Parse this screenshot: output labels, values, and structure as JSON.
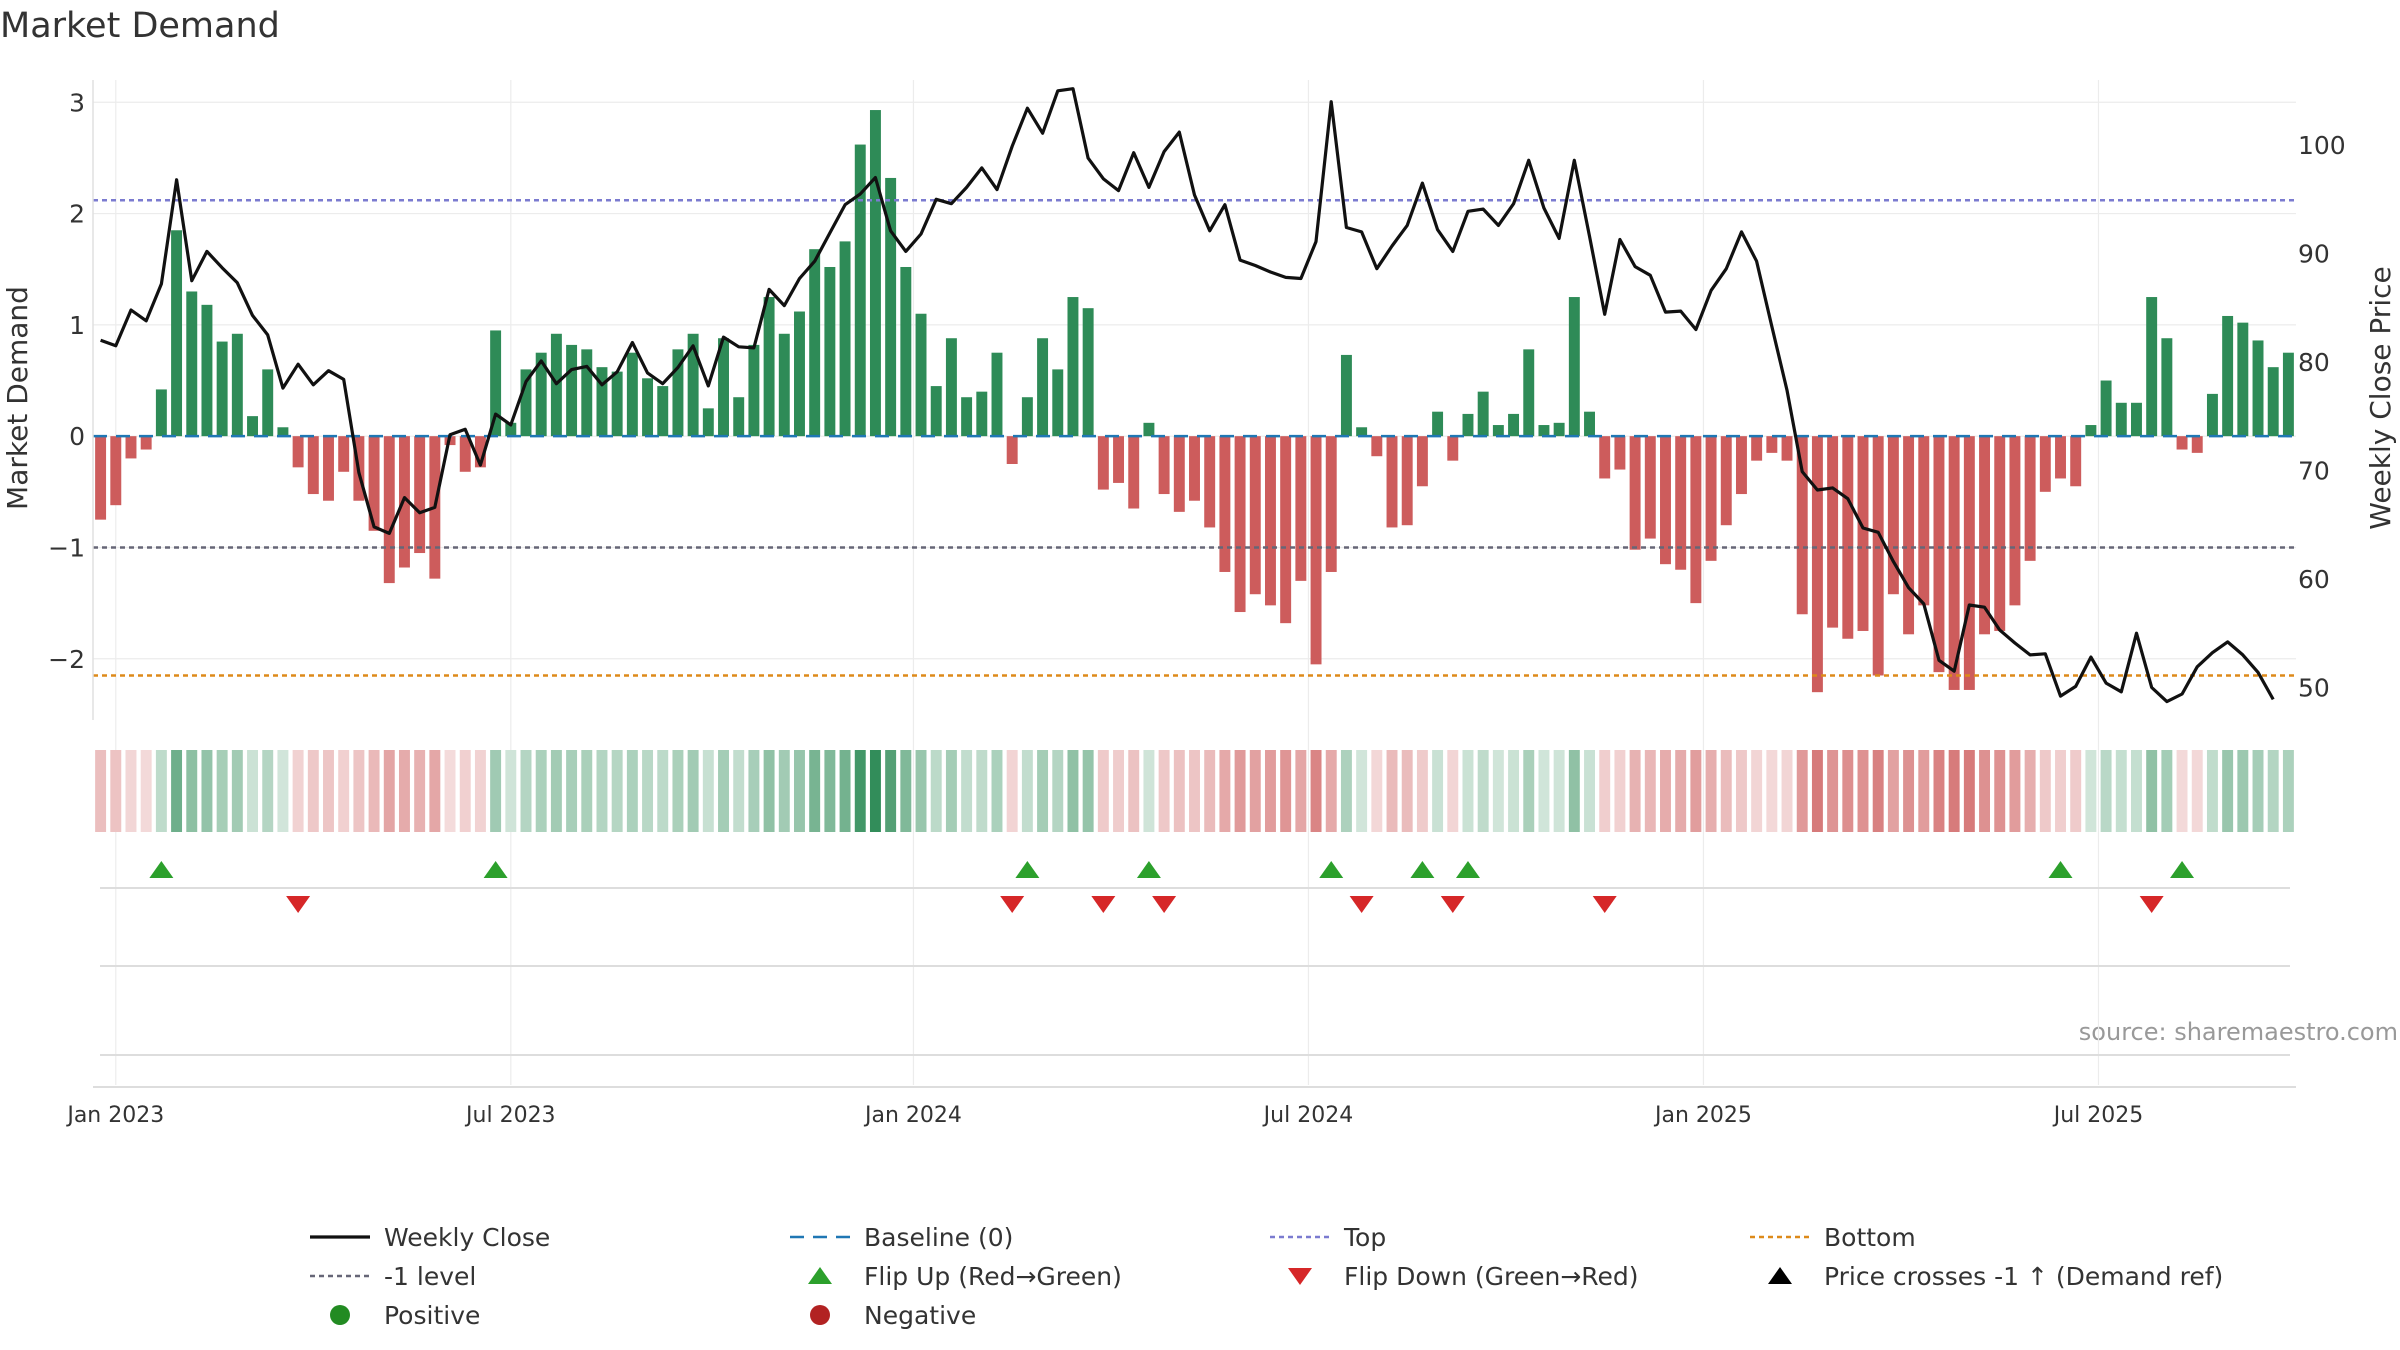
{
  "chart_data": {
    "type": "bar",
    "title": "Market Demand",
    "source": "source: sharemaestro.com",
    "y_left_label": "Market Demand",
    "y_right_label": "Weekly Close Price",
    "y_left_range": [
      -2.55,
      3.2
    ],
    "y_right_range": [
      47,
      106
    ],
    "y_left_ticks": [
      {
        "v": 3,
        "label": "3"
      },
      {
        "v": 2,
        "label": "2"
      },
      {
        "v": 1,
        "label": "1"
      },
      {
        "v": 0,
        "label": "0"
      },
      {
        "v": -1,
        "label": "−1"
      },
      {
        "v": -2,
        "label": "−2"
      }
    ],
    "y_right_ticks": [
      {
        "v": 100,
        "label": "100"
      },
      {
        "v": 90,
        "label": "90"
      },
      {
        "v": 80,
        "label": "80"
      },
      {
        "v": 70,
        "label": "70"
      },
      {
        "v": 60,
        "label": "60"
      },
      {
        "v": 50,
        "label": "50"
      }
    ],
    "x_ticks": [
      {
        "idx": 1,
        "label": "Jan 2023"
      },
      {
        "idx": 27,
        "label": "Jul 2023"
      },
      {
        "idx": 53.5,
        "label": "Jan 2024"
      },
      {
        "idx": 79.5,
        "label": "Jul 2024"
      },
      {
        "idx": 105.5,
        "label": "Jan 2025"
      },
      {
        "idx": 131.5,
        "label": "Jul 2025"
      }
    ],
    "x_range": [
      -0.5,
      144.5
    ],
    "levels": {
      "top": 2.12,
      "minus_one": -1.0,
      "bottom": -2.15,
      "baseline": 0
    },
    "demand": [
      -0.75,
      -0.62,
      -0.2,
      -0.12,
      0.42,
      1.85,
      1.3,
      1.18,
      0.85,
      0.92,
      0.18,
      0.6,
      0.08,
      -0.28,
      -0.52,
      -0.58,
      -0.32,
      -0.58,
      -0.85,
      -1.32,
      -1.18,
      -1.05,
      -1.28,
      -0.08,
      -0.32,
      -0.28,
      0.95,
      0.12,
      0.6,
      0.75,
      0.92,
      0.82,
      0.78,
      0.62,
      0.58,
      0.75,
      0.52,
      0.45,
      0.78,
      0.92,
      0.25,
      0.88,
      0.35,
      0.82,
      1.25,
      0.92,
      1.12,
      1.68,
      1.52,
      1.75,
      2.62,
      2.93,
      2.32,
      1.52,
      1.1,
      0.45,
      0.88,
      0.35,
      0.4,
      0.75,
      -0.25,
      0.35,
      0.88,
      0.6,
      1.25,
      1.15,
      -0.48,
      -0.42,
      -0.65,
      0.12,
      -0.52,
      -0.68,
      -0.58,
      -0.82,
      -1.22,
      -1.58,
      -1.42,
      -1.52,
      -1.68,
      -1.3,
      -2.05,
      -1.22,
      0.73,
      0.08,
      -0.18,
      -0.82,
      -0.8,
      -0.45,
      0.22,
      -0.22,
      0.2,
      0.4,
      0.1,
      0.2,
      0.78,
      0.1,
      0.12,
      1.25,
      0.22,
      -0.38,
      -0.3,
      -1.02,
      -0.92,
      -1.15,
      -1.2,
      -1.5,
      -1.12,
      -0.8,
      -0.52,
      -0.22,
      -0.15,
      -0.22,
      -1.6,
      -2.3,
      -1.72,
      -1.82,
      -1.75,
      -2.15,
      -1.42,
      -1.78,
      -1.52,
      -2.12,
      -2.28,
      -2.28,
      -1.78,
      -1.75,
      -1.52,
      -1.12,
      -0.5,
      -0.38,
      -0.45,
      0.1,
      0.5,
      0.3,
      0.3,
      1.25,
      0.88,
      -0.12,
      -0.15,
      0.38,
      1.08,
      1.02,
      0.86,
      0.62,
      0.75
    ],
    "close": [
      82.0,
      81.5,
      84.8,
      83.8,
      87.2,
      96.8,
      87.5,
      90.2,
      88.7,
      87.3,
      84.3,
      82.5,
      77.6,
      79.8,
      77.9,
      79.2,
      78.4,
      69.8,
      64.8,
      64.2,
      67.5,
      66.1,
      66.6,
      73.3,
      73.8,
      70.5,
      75.2,
      74.2,
      78.2,
      80.1,
      78.0,
      79.3,
      79.6,
      77.9,
      79.1,
      81.8,
      79.0,
      78.0,
      79.5,
      81.5,
      77.8,
      82.3,
      81.4,
      81.3,
      86.7,
      85.2,
      87.7,
      89.3,
      91.9,
      94.5,
      95.5,
      97.0,
      92.1,
      90.2,
      91.8,
      95.0,
      94.6,
      96.1,
      97.9,
      95.9,
      99.9,
      103.4,
      101.1,
      105.0,
      105.2,
      98.8,
      96.9,
      95.8,
      99.3,
      96.1,
      99.4,
      101.2,
      95.4,
      92.1,
      94.5,
      89.4,
      88.9,
      88.3,
      87.8,
      87.7,
      91.1,
      104.0,
      92.4,
      92.0,
      88.6,
      90.7,
      92.6,
      96.5,
      92.2,
      90.2,
      93.9,
      94.1,
      92.6,
      94.6,
      98.6,
      94.2,
      91.4,
      98.6,
      91.6,
      84.4,
      91.3,
      88.8,
      88.0,
      84.6,
      84.7,
      83.0,
      86.6,
      88.6,
      92.0,
      89.3,
      83.3,
      77.4,
      69.9,
      68.2,
      68.4,
      67.4,
      64.7,
      64.3,
      61.6,
      59.2,
      57.7,
      52.5,
      51.5,
      57.6,
      57.4,
      55.3,
      54.1,
      53.0,
      53.1,
      49.2,
      50.1,
      52.8,
      50.4,
      49.6,
      55.0,
      50.0,
      48.7,
      49.4,
      51.9,
      53.2,
      54.2,
      53.0,
      51.4,
      48.9
    ],
    "flips": [
      {
        "idx": 4,
        "dir": "up"
      },
      {
        "idx": 13,
        "dir": "down"
      },
      {
        "idx": 26,
        "dir": "up"
      },
      {
        "idx": 60,
        "dir": "down"
      },
      {
        "idx": 61,
        "dir": "up"
      },
      {
        "idx": 66,
        "dir": "down"
      },
      {
        "idx": 69,
        "dir": "up"
      },
      {
        "idx": 70,
        "dir": "down"
      },
      {
        "idx": 81,
        "dir": "up"
      },
      {
        "idx": 83,
        "dir": "down"
      },
      {
        "idx": 87,
        "dir": "up"
      },
      {
        "idx": 89,
        "dir": "down"
      },
      {
        "idx": 90,
        "dir": "up"
      },
      {
        "idx": 99,
        "dir": "down"
      },
      {
        "idx": 129,
        "dir": "up"
      },
      {
        "idx": 135,
        "dir": "down"
      },
      {
        "idx": 137,
        "dir": "up"
      }
    ],
    "colors": {
      "close_line": "#111111",
      "positive": "#2e8b57",
      "negative": "#cd5c5c",
      "baseline": "#1f77b4",
      "top": "#7b7bd0",
      "minus_one": "#666677",
      "bottom": "#dd8a1a",
      "flip_up": "#2ca02c",
      "flip_down": "#d62728",
      "positive_dot": "#228b22",
      "negative_dot": "#b22222",
      "cross": "#000000"
    },
    "legend": [
      {
        "key": "close",
        "label": "Weekly Close"
      },
      {
        "key": "baseline",
        "label": "Baseline (0)"
      },
      {
        "key": "top",
        "label": "Top"
      },
      {
        "key": "bottom",
        "label": "Bottom"
      },
      {
        "key": "minus_one",
        "label": "-1 level"
      },
      {
        "key": "flip_up",
        "label": "Flip Up (Red→Green)"
      },
      {
        "key": "flip_down",
        "label": "Flip Down (Green→Red)"
      },
      {
        "key": "cross",
        "label": "Price crosses -1 ↑ (Demand ref)"
      },
      {
        "key": "positive",
        "label": "Positive"
      },
      {
        "key": "negative",
        "label": "Negative"
      }
    ]
  }
}
